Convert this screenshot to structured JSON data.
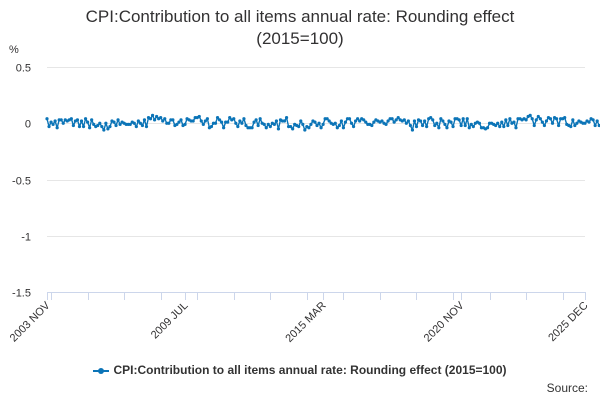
{
  "page": {
    "title_line1": "CPI:Contribution to all items annual rate: Rounding effect",
    "title_line2": "(2015=100)",
    "unit": "%",
    "source_label": "Source:"
  },
  "colors": {
    "series": "#0b74b7",
    "grid": "#e6e6e6",
    "axis": "#ccd6eb",
    "text": "#323132"
  },
  "chart_data": {
    "type": "line",
    "title": "CPI:Contribution to all items annual rate: Rounding effect (2015=100)",
    "ylabel": "%",
    "ylim": [
      -1.5,
      0.5
    ],
    "y_ticks": [
      0.5,
      0,
      -0.5,
      -1,
      -1.5
    ],
    "y_tick_labels": [
      "0.5",
      "0",
      "-0.5",
      "-1",
      "-1.5"
    ],
    "x_range": [
      "2003-11",
      "2025-12"
    ],
    "x_tick_labels": [
      {
        "label": "2003 NOV",
        "date": "2003-11"
      },
      {
        "label": "2009 JUL",
        "date": "2009-07"
      },
      {
        "label": "2015 MAR",
        "date": "2015-03"
      },
      {
        "label": "2020 NOV",
        "date": "2020-11"
      },
      {
        "label": "2025 DEC",
        "date": "2025-12"
      }
    ],
    "grid": "horizontal",
    "legend_position": "bottom",
    "series": [
      {
        "name": "CPI:Contribution to all items annual rate: Rounding effect (2015=100)",
        "start": "2003-11",
        "frequency": "monthly",
        "values": [
          0.04,
          -0.03,
          0.01,
          -0.01,
          0.02,
          -0.04,
          0.03,
          0.03,
          0.0,
          0.03,
          0.02,
          0.03,
          0.04,
          -0.02,
          0.02,
          0.03,
          -0.03,
          0.02,
          -0.03,
          0.04,
          0.01,
          -0.04,
          0.03,
          -0.01,
          -0.03,
          -0.02,
          0.0,
          -0.03,
          -0.06,
          0.0,
          -0.05,
          -0.03,
          0.02,
          0.01,
          -0.02,
          0.03,
          -0.01,
          0.01,
          0.0,
          -0.01,
          -0.01,
          -0.01,
          0.01,
          0.0,
          -0.03,
          0.02,
          0.0,
          -0.02,
          0.03,
          -0.03,
          0.05,
          0.04,
          0.07,
          0.03,
          0.06,
          0.04,
          0.05,
          0.02,
          0.04,
          0.0,
          0.0,
          0.03,
          0.03,
          -0.02,
          -0.01,
          0.01,
          0.03,
          -0.02,
          -0.01,
          0.04,
          0.03,
          0.02,
          0.02,
          0.05,
          0.05,
          0.06,
          0.02,
          -0.01,
          0.02,
          0.04,
          -0.04,
          -0.03,
          0.0,
          0.0,
          0.05,
          0.03,
          0.01,
          -0.04,
          0.01,
          0.01,
          0.05,
          0.03,
          0.04,
          0.0,
          -0.03,
          0.02,
          0.0,
          0.04,
          -0.02,
          -0.04,
          -0.04,
          -0.04,
          0.01,
          0.03,
          -0.02,
          0.04,
          0.0,
          -0.01,
          -0.04,
          -0.01,
          -0.03,
          0.0,
          -0.01,
          0.02,
          -0.05,
          0.03,
          0.02,
          0.02,
          0.05,
          -0.03,
          -0.03,
          -0.05,
          -0.01,
          -0.02,
          -0.03,
          0.02,
          -0.01,
          -0.06,
          -0.03,
          -0.04,
          -0.01,
          0.02,
          0.01,
          -0.02,
          0.0,
          -0.04,
          -0.01,
          0.04,
          0.04,
          0.02,
          0.0,
          -0.01,
          0.0,
          -0.04,
          -0.02,
          0.02,
          -0.04,
          0.01,
          0.04,
          0.04,
          0.0,
          -0.03,
          0.02,
          0.04,
          0.02,
          0.04,
          0.03,
          0.01,
          -0.01,
          -0.01,
          -0.02,
          0.01,
          0.03,
          0.02,
          0.01,
          0.02,
          0.0,
          -0.01,
          0.02,
          0.04,
          0.04,
          0.01,
          0.03,
          0.05,
          0.03,
          0.02,
          0.03,
          0.0,
          0.02,
          -0.02,
          -0.06,
          0.02,
          -0.03,
          0.03,
          0.02,
          -0.02,
          0.02,
          -0.03,
          0.04,
          0.05,
          0.03,
          -0.02,
          0.0,
          -0.04,
          0.04,
          0.02,
          -0.01,
          -0.04,
          0.02,
          0.01,
          -0.03,
          0.04,
          0.04,
          0.03,
          -0.02,
          0.04,
          -0.02,
          0.04,
          -0.04,
          -0.01,
          -0.03,
          0.0,
          0.01,
          0.0,
          -0.04,
          -0.04,
          -0.05,
          -0.04,
          0.0,
          0.0,
          -0.01,
          -0.02,
          0.0,
          -0.03,
          0.01,
          -0.03,
          0.03,
          -0.02,
          0.04,
          0.0,
          0.01,
          -0.04,
          0.04,
          0.04,
          0.03,
          0.04,
          0.03,
          0.06,
          0.07,
          0.04,
          -0.02,
          0.03,
          0.06,
          0.04,
          0.01,
          -0.02,
          0.02,
          0.05,
          0.04,
          0.0,
          0.05,
          0.04,
          -0.02,
          0.04,
          0.04,
          0.05,
          -0.01,
          -0.02,
          -0.03,
          0.03,
          -0.02,
          0.0,
          0.02,
          0.01,
          0.0,
          0.0,
          0.02,
          0.01,
          0.04,
          0.03,
          -0.02,
          0.02,
          -0.02,
          -0.02,
          -0.03,
          -0.01,
          -0.03,
          0.03,
          0.02,
          0.0,
          0.01,
          0.04,
          -0.03,
          0.02,
          0.05,
          0.02,
          -0.01
        ]
      }
    ]
  }
}
